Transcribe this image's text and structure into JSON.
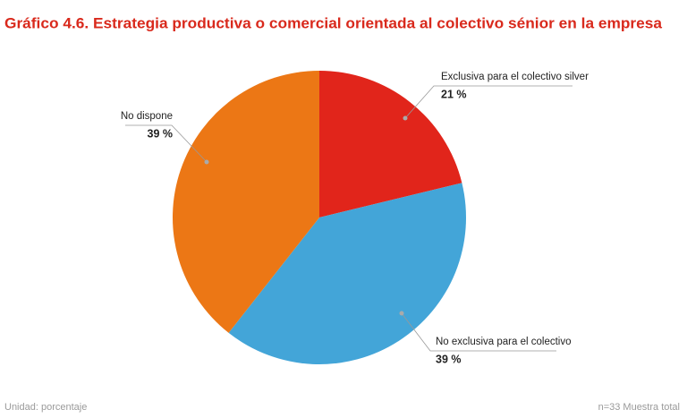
{
  "chart_data": {
    "type": "pie",
    "title": "Gráfico 4.6. Estrategia productiva o comercial orientada al colectivo sénior en la empresa",
    "categories": [
      "Exclusiva para el colectivo silver",
      "No exclusiva para el colectivo",
      "No dispone"
    ],
    "values": [
      21,
      39,
      39
    ],
    "value_labels": [
      "21 %",
      "39 %",
      "39 %"
    ],
    "colors": [
      "#e1251b",
      "#43a5d8",
      "#ec7715"
    ],
    "unit_note": "Unidad: porcentaje",
    "sample_note": "n=33  Muestra total"
  }
}
